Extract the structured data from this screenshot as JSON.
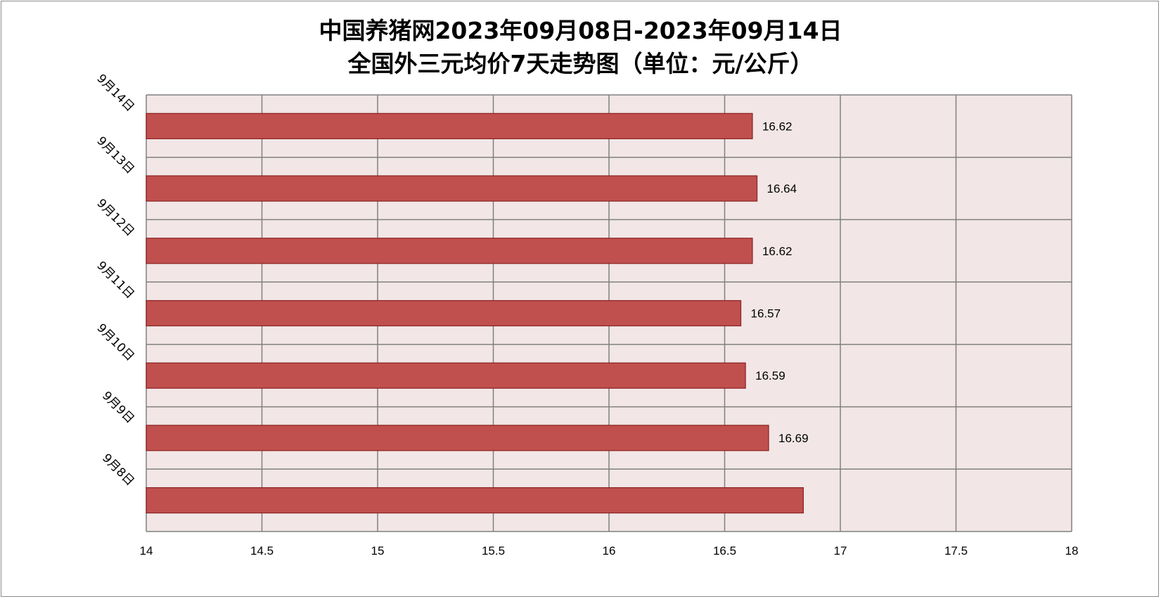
{
  "chart_data": {
    "type": "bar",
    "orientation": "horizontal",
    "title_line1": "中国养猪网2023年09月08日-2023年09月14日",
    "title_line2": "全国外三元均价7天走势图（单位：元/公斤）",
    "categories": [
      "9月14日",
      "9月13日",
      "9月12日",
      "9月11日",
      "9月10日",
      "9月9日",
      "9月8日"
    ],
    "values": [
      16.62,
      16.64,
      16.62,
      16.57,
      16.59,
      16.69,
      16.84
    ],
    "data_labels": [
      "16.62",
      "16.64",
      "16.62",
      "16.57",
      "16.59",
      "16.69",
      ""
    ],
    "x_ticks": [
      "14",
      "14.5",
      "15",
      "15.5",
      "16",
      "16.5",
      "17",
      "17.5",
      "18"
    ],
    "xlim": [
      14,
      18
    ],
    "grid": true,
    "colors": {
      "bar": "#c0504d",
      "bar_border": "#8b2020",
      "plot_bg": "#f2e6e6",
      "grid": "#808080"
    }
  }
}
